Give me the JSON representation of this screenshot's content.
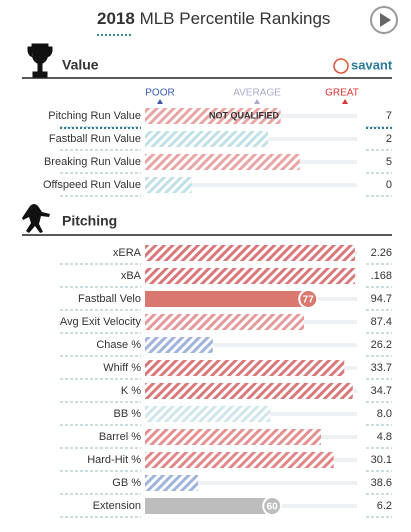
{
  "header": {
    "year": "2018",
    "title": "MLB Percentile Rankings"
  },
  "scale": {
    "min": 0,
    "max": 100,
    "poor": "POOR",
    "average": "AVERAGE",
    "great": "GREAT"
  },
  "value_section": {
    "title": "Value",
    "brand": "savant",
    "note": "NOT QUALIFIED",
    "rows": [
      {
        "label": "Pitching Run Value",
        "stat": "7",
        "percentile": 64,
        "color": "#e8a5a5",
        "style": "hatched"
      },
      {
        "label": "Fastball Run Value",
        "stat": "2",
        "percentile": 58,
        "color": "#bfe0e6",
        "style": "hatched"
      },
      {
        "label": "Breaking Run Value",
        "stat": "5",
        "percentile": 73,
        "color": "#e8a5a5",
        "style": "hatched"
      },
      {
        "label": "Offspeed Run Value",
        "stat": "0",
        "percentile": 22,
        "color": "#bfe0e6",
        "style": "hatched"
      }
    ]
  },
  "pitching_section": {
    "title": "Pitching",
    "rows": [
      {
        "label": "xERA",
        "stat": "2.26",
        "percentile": 99,
        "color": "#d9787a",
        "style": "hatched"
      },
      {
        "label": "xBA",
        "stat": ".168",
        "percentile": 99,
        "color": "#d9787a",
        "style": "hatched"
      },
      {
        "label": "Fastball Velo",
        "stat": "94.7",
        "percentile": 77,
        "color": "#d9786e",
        "style": "solid"
      },
      {
        "label": "Avg Exit Velocity",
        "stat": "87.4",
        "percentile": 75,
        "color": "#e49a9a",
        "style": "hatched"
      },
      {
        "label": "Chase %",
        "stat": "26.2",
        "percentile": 32,
        "color": "#9fb3dd",
        "style": "hatched"
      },
      {
        "label": "Whiff %",
        "stat": "33.7",
        "percentile": 94,
        "color": "#d9787a",
        "style": "hatched"
      },
      {
        "label": "K %",
        "stat": "34.7",
        "percentile": 98,
        "color": "#d9787a",
        "style": "hatched"
      },
      {
        "label": "BB %",
        "stat": "8.0",
        "percentile": 59,
        "color": "#cfe6ea",
        "style": "hatched"
      },
      {
        "label": "Barrel %",
        "stat": "4.8",
        "percentile": 83,
        "color": "#e49090",
        "style": "hatched"
      },
      {
        "label": "Hard-Hit %",
        "stat": "30.1",
        "percentile": 89,
        "color": "#e08888",
        "style": "hatched"
      },
      {
        "label": "GB %",
        "stat": "38.6",
        "percentile": 25,
        "color": "#9fb3dd",
        "style": "hatched"
      },
      {
        "label": "Extension",
        "stat": "6.2",
        "percentile": 60,
        "color": "#bdbdbd",
        "style": "solid"
      }
    ]
  }
}
